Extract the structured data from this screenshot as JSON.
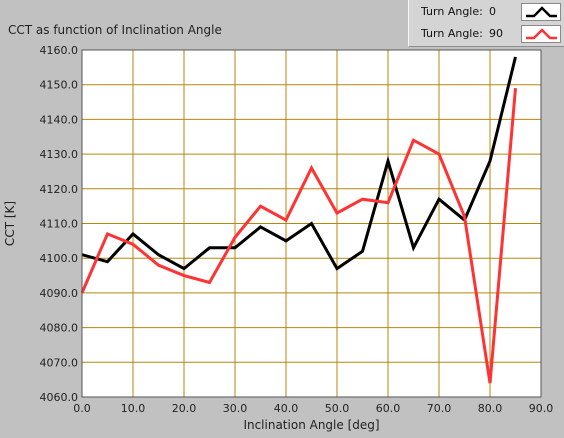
{
  "chart_data": {
    "type": "line",
    "title": "CCT as function of Inclination Angle",
    "xlabel": "Inclination Angle [deg]",
    "ylabel": "CCT [K]",
    "xlim": [
      0,
      90
    ],
    "ylim": [
      4060,
      4160
    ],
    "xticks": [
      "0.0",
      "10.0",
      "20.0",
      "30.0",
      "40.0",
      "50.0",
      "60.0",
      "70.0",
      "80.0",
      "90.0"
    ],
    "yticks": [
      "4160.0",
      "4150.0",
      "4140.0",
      "4130.0",
      "4120.0",
      "4110.0",
      "4100.0",
      "4090.0",
      "4080.0",
      "4070.0",
      "4060.0"
    ],
    "grid": true,
    "grid_color": "#b8860b",
    "legend_position": "top-right",
    "series": [
      {
        "name": "Turn Angle:",
        "legend_value": "0",
        "color": "#000000",
        "x": [
          0,
          5,
          10,
          15,
          20,
          25,
          30,
          35,
          40,
          45,
          50,
          55,
          60,
          65,
          70,
          75,
          80,
          85
        ],
        "y": [
          4101,
          4099,
          4107,
          4101,
          4097,
          4103,
          4103,
          4109,
          4105,
          4110,
          4097,
          4102,
          4128,
          4103,
          4117,
          4111,
          4128,
          4158
        ]
      },
      {
        "name": "Turn Angle:",
        "legend_value": "90",
        "color": "#ff3333",
        "x": [
          0,
          5,
          10,
          15,
          20,
          25,
          30,
          35,
          40,
          45,
          50,
          55,
          60,
          65,
          70,
          75,
          80,
          85
        ],
        "y": [
          4090,
          4107,
          4104,
          4098,
          4095,
          4093,
          4106,
          4115,
          4111,
          4126,
          4113,
          4117,
          4116,
          4134,
          4130,
          4112,
          4064,
          4149
        ]
      }
    ]
  }
}
